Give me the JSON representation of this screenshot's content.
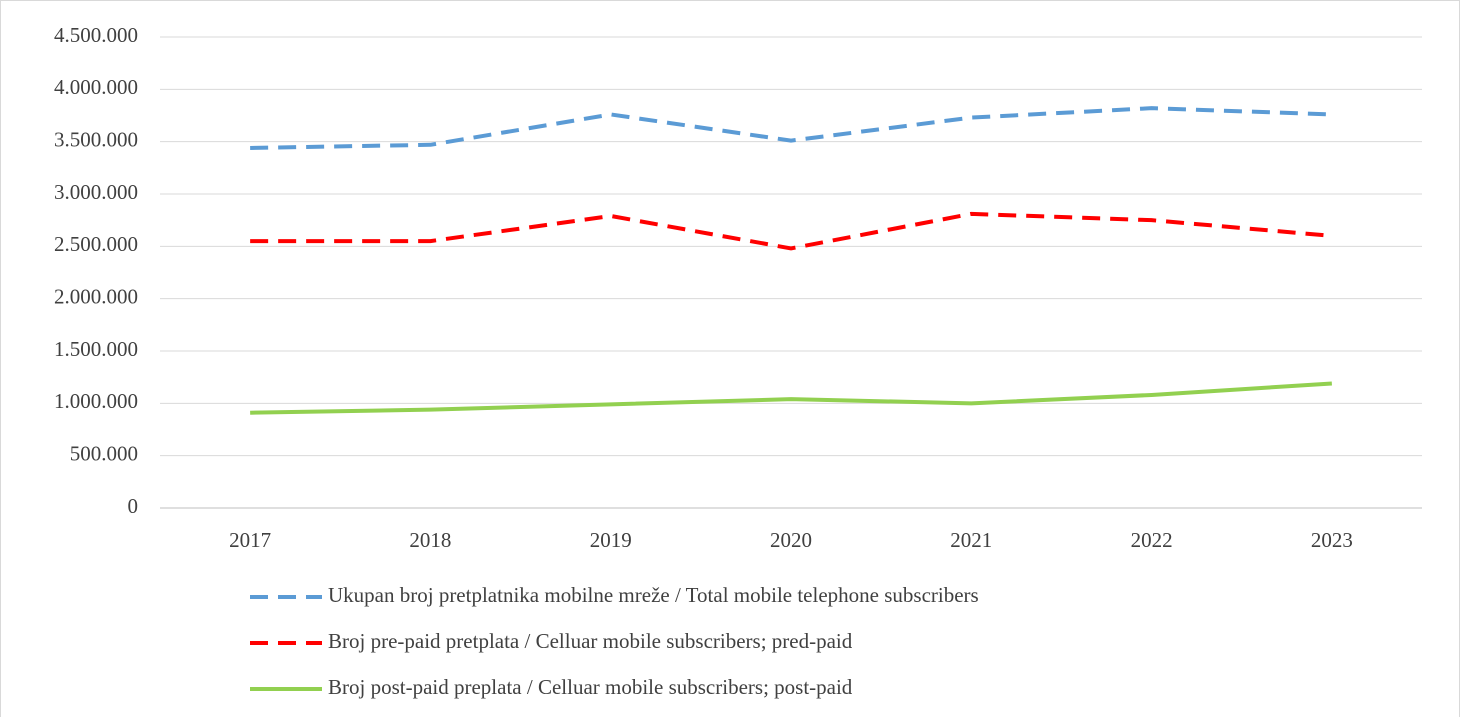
{
  "chart_data": {
    "type": "line",
    "categories": [
      "2017",
      "2018",
      "2019",
      "2020",
      "2021",
      "2022",
      "2023"
    ],
    "series": [
      {
        "name": "Ukupan broj pretplatnika mobilne mreže / Total mobile telephone subscribers",
        "color": "#5b9bd5",
        "style": "dashed",
        "values": [
          3440000,
          3470000,
          3760000,
          3510000,
          3730000,
          3820000,
          3760000
        ]
      },
      {
        "name": "Broj pre-paid pretplata / Celluar mobile subscribers; pred-paid",
        "color": "#ff0000",
        "style": "dashed",
        "values": [
          2550000,
          2550000,
          2790000,
          2480000,
          2810000,
          2750000,
          2600000
        ]
      },
      {
        "name": "Broj post-paid preplata / Celluar mobile subscribers; post-paid",
        "color": "#92d050",
        "style": "solid",
        "values": [
          910000,
          940000,
          990000,
          1040000,
          1000000,
          1080000,
          1190000
        ]
      }
    ],
    "ylim": [
      0,
      4500000
    ],
    "yticks": [
      0,
      {
        "value": 500000,
        "label": "500.000"
      },
      {
        "value": 1000000,
        "label": "1.000.000"
      },
      {
        "value": 1500000,
        "label": "1.500.000"
      },
      {
        "value": 2000000,
        "label": "2.000.000"
      },
      {
        "value": 2500000,
        "label": "2.500.000"
      },
      {
        "value": 3000000,
        "label": "3.000.000"
      },
      {
        "value": 3500000,
        "label": "3.500.000"
      },
      {
        "value": 4000000,
        "label": "4.000.000"
      },
      {
        "value": 4500000,
        "label": "4.500.000"
      }
    ],
    "grid": true,
    "legend": "bottom"
  }
}
